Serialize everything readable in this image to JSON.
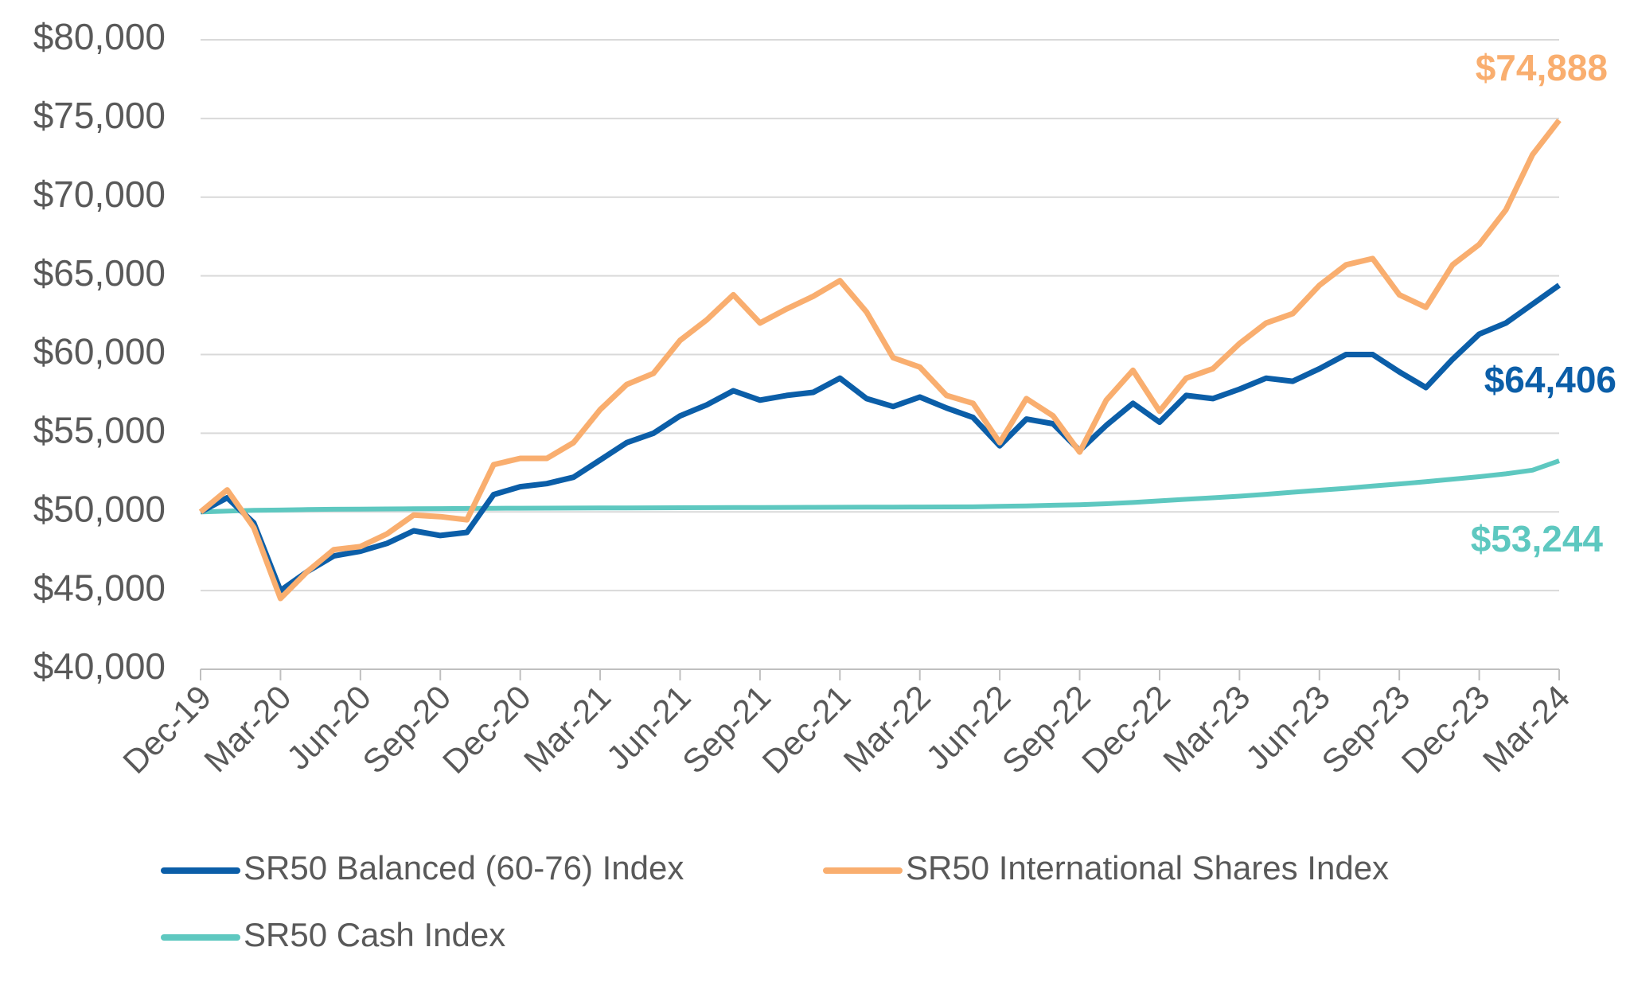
{
  "chart_data": {
    "type": "line",
    "categories": [
      "Dec-19",
      null,
      null,
      "Mar-20",
      null,
      null,
      "Jun-20",
      null,
      null,
      "Sep-20",
      null,
      null,
      "Dec-20",
      null,
      null,
      "Mar-21",
      null,
      null,
      "Jun-21",
      null,
      null,
      "Sep-21",
      null,
      null,
      "Dec-21",
      null,
      null,
      "Mar-22",
      null,
      null,
      "Jun-22",
      null,
      null,
      "Sep-22",
      null,
      null,
      "Dec-22",
      null,
      null,
      "Mar-23",
      null,
      null,
      "Jun-23",
      null,
      null,
      "Sep-23",
      null,
      null,
      "Dec-23",
      null,
      null,
      "Mar-24"
    ],
    "series": [
      {
        "name": "SR50 Balanced (60-76) Index",
        "color": "#0b5ea8",
        "end_label": "$64,406",
        "values": [
          50000,
          50900,
          49300,
          45000,
          46200,
          47200,
          47500,
          48000,
          48800,
          48500,
          48700,
          51100,
          51600,
          51800,
          52200,
          53300,
          54400,
          55000,
          56100,
          56800,
          57700,
          57100,
          57400,
          57600,
          58500,
          57200,
          56700,
          57300,
          56600,
          56000,
          54200,
          55900,
          55600,
          53900,
          55500,
          56900,
          55700,
          57400,
          57200,
          57800,
          58500,
          58300,
          59100,
          60000,
          60000,
          58900,
          57900,
          59700,
          61300,
          62000,
          63200,
          64406
        ]
      },
      {
        "name": "SR50 International Shares Index",
        "color": "#f9ae6f",
        "end_label": "$74,888",
        "values": [
          50000,
          51400,
          49000,
          44500,
          46200,
          47600,
          47800,
          48600,
          49800,
          49700,
          49500,
          53000,
          53400,
          53400,
          54400,
          56500,
          58100,
          58800,
          60900,
          62200,
          63800,
          62000,
          62900,
          63700,
          64700,
          62700,
          59800,
          59200,
          57400,
          56900,
          54400,
          57200,
          56100,
          53800,
          57100,
          59000,
          56400,
          58500,
          59100,
          60700,
          62000,
          62600,
          64400,
          65700,
          66100,
          63800,
          63000,
          65700,
          67000,
          69200,
          72700,
          74888
        ]
      },
      {
        "name": "SR50 Cash Index",
        "color": "#5ec8c0",
        "end_label": "$53,244",
        "values": [
          50000,
          50050,
          50100,
          50120,
          50150,
          50170,
          50180,
          50190,
          50200,
          50210,
          50220,
          50230,
          50235,
          50240,
          50245,
          50250,
          50255,
          50260,
          50265,
          50270,
          50275,
          50280,
          50285,
          50290,
          50295,
          50300,
          50305,
          50310,
          50315,
          50320,
          50350,
          50380,
          50420,
          50460,
          50520,
          50600,
          50700,
          50800,
          50900,
          51000,
          51120,
          51250,
          51380,
          51500,
          51640,
          51780,
          51920,
          52080,
          52240,
          52420,
          52650,
          53244
        ]
      }
    ],
    "ylim": [
      40000,
      80000
    ],
    "yticks": [
      {
        "value": 40000,
        "label": "$40,000"
      },
      {
        "value": 45000,
        "label": "$45,000"
      },
      {
        "value": 50000,
        "label": "$50,000"
      },
      {
        "value": 55000,
        "label": "$55,000"
      },
      {
        "value": 60000,
        "label": "$60,000"
      },
      {
        "value": 65000,
        "label": "$65,000"
      },
      {
        "value": 70000,
        "label": "$70,000"
      },
      {
        "value": 75000,
        "label": "$75,000"
      },
      {
        "value": 80000,
        "label": "$80,000"
      }
    ],
    "grid": true
  }
}
